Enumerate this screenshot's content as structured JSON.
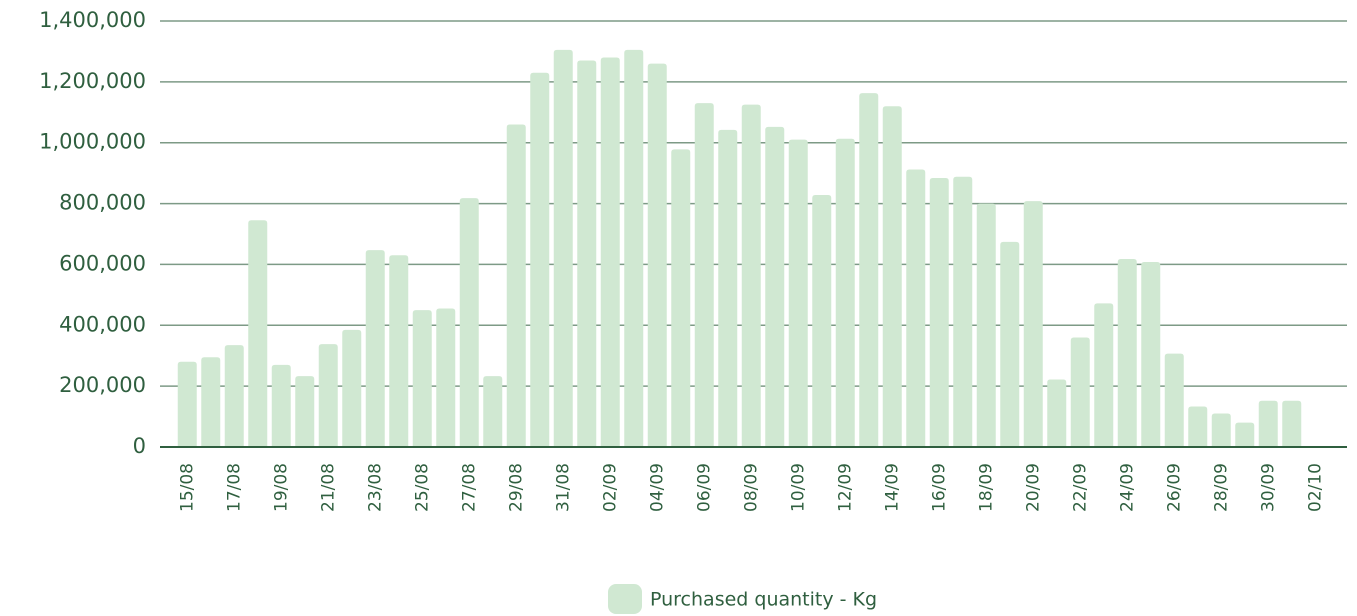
{
  "chart_data": {
    "type": "bar",
    "categories": [
      "15/08",
      null,
      "17/08",
      null,
      "19/08",
      null,
      "21/08",
      null,
      "23/08",
      null,
      "25/08",
      null,
      "27/08",
      null,
      "29/08",
      null,
      "31/08",
      null,
      "02/09",
      null,
      "04/09",
      null,
      "06/09",
      null,
      "08/09",
      null,
      "10/09",
      null,
      "12/09",
      null,
      "14/09",
      null,
      "16/09",
      null,
      "18/09",
      null,
      "20/09",
      null,
      "22/09",
      null,
      "24/09",
      null,
      "26/09",
      null,
      "28/09",
      null,
      "30/09",
      null,
      "02/10"
    ],
    "series": [
      {
        "name": "Purchased quantity - Kg",
        "color": "#d0e8d2",
        "values": [
          280000,
          295000,
          335000,
          745000,
          270000,
          233000,
          338000,
          385000,
          647000,
          630000,
          450000,
          455000,
          818000,
          233000,
          1060000,
          1230000,
          1305000,
          1270000,
          1280000,
          1305000,
          1260000,
          978000,
          1130000,
          1042000,
          1125000,
          1052000,
          1010000,
          828000,
          1013000,
          1163000,
          1120000,
          912000,
          884000,
          888000,
          800000,
          674000,
          808000,
          222000,
          360000,
          472000,
          618000,
          608000,
          307000,
          133000,
          110000,
          80000,
          152000,
          152000,
          null
        ]
      }
    ],
    "ylim": [
      0,
      1400000
    ],
    "yticks": [
      0,
      {
        "value": 200000,
        "label": "200,000"
      },
      {
        "value": 400000,
        "label": "400,000"
      },
      {
        "value": 600000,
        "label": "600,000"
      },
      {
        "value": 800000,
        "label": "800,000"
      },
      {
        "value": 1000000,
        "label": "1,000,000"
      },
      {
        "value": 1200000,
        "label": "1,200,000"
      },
      {
        "value": 1400000,
        "label": "1,400,000"
      }
    ],
    "grid": true,
    "legend": "bottom"
  }
}
